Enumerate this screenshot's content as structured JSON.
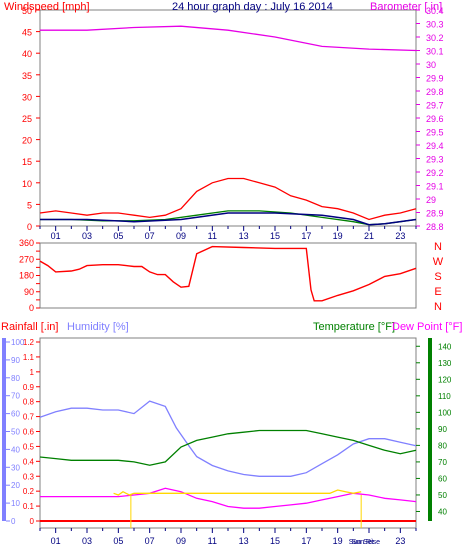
{
  "chart_data": [
    {
      "type": "line",
      "panel": "wind-baro",
      "title": "24 hour graph day : July 16 2014",
      "left_label": "Windspeed [mph]",
      "right_label": "Barometer [ in]",
      "x_tick_labels": [
        "01",
        "03",
        "05",
        "07",
        "09",
        "11",
        "13",
        "15",
        "17",
        "19",
        "21",
        "23"
      ],
      "x_range_hours": [
        0,
        24
      ],
      "left_axis": {
        "ticks": [
          0,
          5,
          10,
          15,
          20,
          25,
          30,
          35,
          40,
          45,
          50
        ],
        "range": [
          0,
          50
        ]
      },
      "right_axis": {
        "ticks": [
          "28.8",
          "28.9",
          "29",
          "29.1",
          "29.2",
          "29.3",
          "29.4",
          "29.5",
          "29.6",
          "29.7",
          "29.8",
          "29.9",
          "30",
          "30.1",
          "30.2",
          "30.3",
          "30.4"
        ],
        "range": [
          28.8,
          30.4
        ]
      },
      "grid": false,
      "series": [
        {
          "key": "barometer",
          "axis": "right",
          "color": "#e600e6",
          "points": [
            [
              0,
              30.25
            ],
            [
              3,
              30.25
            ],
            [
              6,
              30.27
            ],
            [
              9,
              30.28
            ],
            [
              12,
              30.25
            ],
            [
              15,
              30.2
            ],
            [
              18,
              30.13
            ],
            [
              21,
              30.11
            ],
            [
              24,
              30.1
            ]
          ]
        },
        {
          "key": "gust",
          "axis": "left",
          "color": "#ff0000",
          "points": [
            [
              0,
              3
            ],
            [
              1,
              3.5
            ],
            [
              2,
              3
            ],
            [
              3,
              2.5
            ],
            [
              4,
              3
            ],
            [
              5,
              3
            ],
            [
              6,
              2.5
            ],
            [
              7,
              2
            ],
            [
              8,
              2.5
            ],
            [
              9,
              4
            ],
            [
              10,
              8
            ],
            [
              11,
              10
            ],
            [
              12,
              11
            ],
            [
              13,
              11
            ],
            [
              14,
              10
            ],
            [
              15,
              9
            ],
            [
              16,
              7
            ],
            [
              17,
              6
            ],
            [
              18,
              4.5
            ],
            [
              19,
              4
            ],
            [
              20,
              3
            ],
            [
              21,
              1.5
            ],
            [
              22,
              2.5
            ],
            [
              23,
              3
            ],
            [
              24,
              4
            ]
          ]
        },
        {
          "key": "wind_avg",
          "axis": "left",
          "color": "#008000",
          "points": [
            [
              0,
              1.5
            ],
            [
              2,
              1.5
            ],
            [
              4,
              1.2
            ],
            [
              6,
              1.2
            ],
            [
              8,
              1.5
            ],
            [
              10,
              2.5
            ],
            [
              12,
              3.5
            ],
            [
              14,
              3.5
            ],
            [
              16,
              3
            ],
            [
              18,
              2
            ],
            [
              20,
              1
            ],
            [
              21,
              0.3
            ],
            [
              22,
              0.5
            ],
            [
              23,
              1
            ],
            [
              24,
              1.5
            ]
          ]
        },
        {
          "key": "wind_line",
          "axis": "left",
          "color": "#000080",
          "points": [
            [
              0,
              1.5
            ],
            [
              3,
              1.5
            ],
            [
              6,
              1
            ],
            [
              9,
              1.5
            ],
            [
              12,
              3
            ],
            [
              15,
              3
            ],
            [
              18,
              2.5
            ],
            [
              20,
              1.5
            ],
            [
              21,
              0.3
            ],
            [
              22,
              0.5
            ],
            [
              24,
              1.5
            ]
          ]
        }
      ]
    },
    {
      "type": "line",
      "panel": "wind-direction",
      "x_range_hours": [
        0,
        24
      ],
      "y_axis": {
        "ticks": [
          0,
          45,
          90,
          135,
          180,
          225,
          270,
          315,
          360
        ],
        "range": [
          0,
          360
        ]
      },
      "compass_labels": [
        "N",
        "W",
        "S",
        "E",
        "N"
      ],
      "color": "#ff0000",
      "points": [
        [
          0,
          260
        ],
        [
          0.5,
          235
        ],
        [
          1,
          200
        ],
        [
          2,
          205
        ],
        [
          2.5,
          215
        ],
        [
          3,
          235
        ],
        [
          4,
          240
        ],
        [
          5,
          240
        ],
        [
          5.5,
          235
        ],
        [
          6,
          230
        ],
        [
          6.5,
          230
        ],
        [
          7,
          200
        ],
        [
          7.5,
          185
        ],
        [
          8,
          185
        ],
        [
          8.5,
          145
        ],
        [
          9,
          115
        ],
        [
          9.5,
          120
        ],
        [
          10,
          300
        ],
        [
          11,
          340
        ],
        [
          13,
          335
        ],
        [
          15,
          330
        ],
        [
          17,
          330
        ],
        [
          17.3,
          100
        ],
        [
          17.5,
          40
        ],
        [
          18,
          40
        ],
        [
          19,
          70
        ],
        [
          20,
          95
        ],
        [
          21,
          130
        ],
        [
          22,
          175
        ],
        [
          23,
          190
        ],
        [
          24,
          220
        ]
      ]
    },
    {
      "type": "line",
      "panel": "rain-hum-temp",
      "left_label_1": "Rainfall [.in]",
      "left_label_2": "Humidity [%]",
      "right_label_1": "Temperature [°F]",
      "right_label_2": "Dew Point [°F]",
      "x_tick_labels": [
        "01",
        "03",
        "05",
        "07",
        "09",
        "11",
        "13",
        "15",
        "17",
        "19",
        "Sun Set",
        "Sun Rise",
        "23"
      ],
      "x_range_hours": [
        0,
        24
      ],
      "humidity_axis": {
        "ticks": [
          0,
          10,
          20,
          30,
          40,
          50,
          60,
          70,
          80,
          90,
          100
        ],
        "range": [
          0,
          100
        ]
      },
      "rain_axis": {
        "ticks": [
          "0",
          "0.1",
          "0.2",
          "0.3",
          "0.4",
          "0.5",
          "0.6",
          "0.7",
          "0.8",
          "0.9",
          "1",
          "1.1",
          "1.2"
        ],
        "range": [
          0,
          1.2
        ]
      },
      "temp_axis": {
        "ticks": [
          40,
          50,
          60,
          70,
          80,
          90,
          100,
          110,
          120,
          130,
          140
        ],
        "range": [
          30,
          145
        ]
      },
      "series": [
        {
          "key": "humidity",
          "axis": "humidity",
          "color": "#8080ff",
          "points": [
            [
              0,
              58
            ],
            [
              1,
              61
            ],
            [
              2,
              63
            ],
            [
              3,
              63
            ],
            [
              4,
              62
            ],
            [
              5,
              62
            ],
            [
              6,
              60
            ],
            [
              7,
              67
            ],
            [
              8,
              64
            ],
            [
              8.7,
              52
            ],
            [
              9.5,
              42
            ],
            [
              10,
              36
            ],
            [
              11,
              31
            ],
            [
              12,
              28
            ],
            [
              13,
              26
            ],
            [
              14,
              25
            ],
            [
              15,
              25
            ],
            [
              16,
              25
            ],
            [
              17,
              27
            ],
            [
              18,
              32
            ],
            [
              19,
              37
            ],
            [
              20,
              43
            ],
            [
              21,
              46
            ],
            [
              22,
              46
            ],
            [
              23,
              44
            ],
            [
              24,
              42
            ]
          ]
        },
        {
          "key": "temperature",
          "axis": "temp",
          "color": "#008000",
          "points": [
            [
              0,
              73
            ],
            [
              1,
              72
            ],
            [
              2,
              71
            ],
            [
              3,
              71
            ],
            [
              4,
              71
            ],
            [
              5,
              71
            ],
            [
              6,
              70
            ],
            [
              7,
              68
            ],
            [
              8,
              70
            ],
            [
              9,
              79
            ],
            [
              10,
              83
            ],
            [
              11,
              85
            ],
            [
              12,
              87
            ],
            [
              13,
              88
            ],
            [
              14,
              89
            ],
            [
              15,
              89
            ],
            [
              16,
              89
            ],
            [
              17,
              89
            ],
            [
              18,
              87
            ],
            [
              19,
              85
            ],
            [
              20,
              83
            ],
            [
              21,
              80
            ],
            [
              22,
              77
            ],
            [
              23,
              75
            ],
            [
              24,
              77
            ]
          ]
        },
        {
          "key": "dew_point",
          "axis": "temp",
          "color": "#ff00ff",
          "points": [
            [
              0,
              49
            ],
            [
              3,
              49
            ],
            [
              5,
              49
            ],
            [
              6,
              50
            ],
            [
              7,
              51
            ],
            [
              8,
              54
            ],
            [
              9,
              52
            ],
            [
              10,
              48
            ],
            [
              11,
              46
            ],
            [
              12,
              43
            ],
            [
              13,
              42
            ],
            [
              14,
              42
            ],
            [
              15,
              43
            ],
            [
              16,
              44
            ],
            [
              17,
              45
            ],
            [
              18,
              47
            ],
            [
              19,
              49
            ],
            [
              20,
              51
            ],
            [
              21,
              50
            ],
            [
              22,
              48
            ],
            [
              23,
              47
            ],
            [
              24,
              46
            ]
          ]
        },
        {
          "key": "rainfall",
          "axis": "rain",
          "color": "#ff0000",
          "points": [
            [
              0,
              0
            ],
            [
              24,
              0
            ]
          ]
        },
        {
          "key": "solar",
          "axis": "temp",
          "color": "#ffd700",
          "points": [
            [
              4.7,
              51
            ],
            [
              5,
              50
            ],
            [
              5.3,
              52
            ],
            [
              5.7,
              50
            ],
            [
              6,
              51
            ],
            [
              18.5,
              51
            ],
            [
              19,
              53
            ],
            [
              19.5,
              52
            ],
            [
              20,
              51
            ],
            [
              20.5,
              52
            ]
          ]
        }
      ],
      "sun_markers_hours": [
        5.8,
        20.5
      ]
    }
  ]
}
